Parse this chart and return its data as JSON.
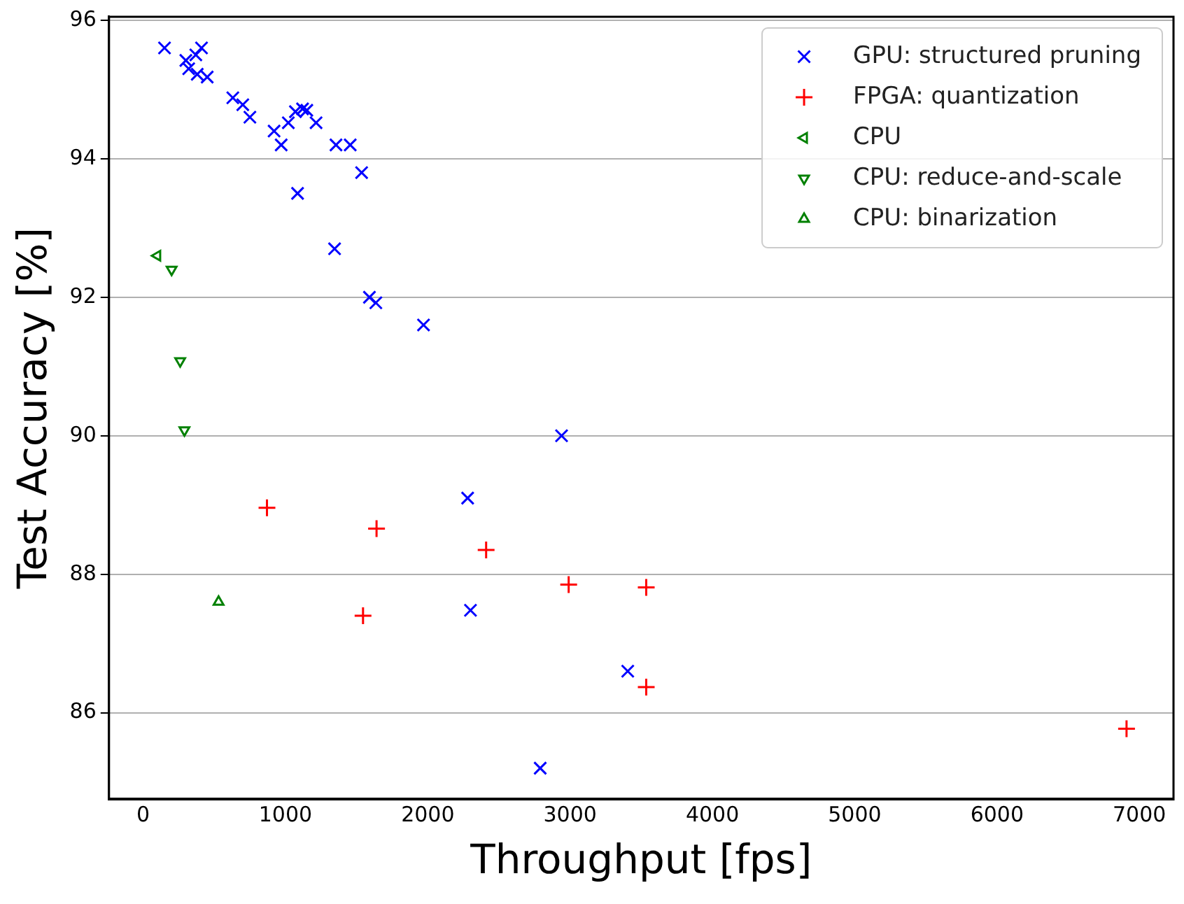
{
  "chart_data": {
    "type": "scatter",
    "xlabel": "Throughput [fps]",
    "ylabel": "Test Accuracy [%]",
    "xlim": [
      -240,
      7240
    ],
    "xticks": [
      0,
      1000,
      2000,
      3000,
      4000,
      5000,
      6000,
      7000
    ],
    "ylim": [
      84.75,
      96.05
    ],
    "yticks": [
      86,
      88,
      90,
      92,
      94,
      96
    ],
    "grid": "y",
    "legend": "top right",
    "series": [
      {
        "name": "GPU: structured pruning",
        "color": "#0000ff",
        "marker": "x",
        "x": [
          150,
          300,
          370,
          410,
          320,
          380,
          450,
          630,
          700,
          750,
          920,
          970,
          1020,
          1070,
          1120,
          1150,
          1215,
          1355,
          1455,
          1535,
          1085,
          1345,
          1590,
          1635,
          1970,
          2940,
          2280,
          2300,
          3405,
          2790
        ],
        "values": [
          95.6,
          95.42,
          95.5,
          95.6,
          95.3,
          95.22,
          95.18,
          94.88,
          94.78,
          94.6,
          94.4,
          94.2,
          94.52,
          94.68,
          94.72,
          94.7,
          94.52,
          94.2,
          94.2,
          93.8,
          93.5,
          92.7,
          92.0,
          91.92,
          91.6,
          90.0,
          89.1,
          87.48,
          86.6,
          85.2
        ]
      },
      {
        "name": "FPGA: quantization",
        "color": "#ff0000",
        "marker": "cross",
        "x": [
          870,
          1640,
          2410,
          2990,
          3535,
          1545,
          3535,
          6910
        ],
        "values": [
          88.96,
          88.66,
          88.35,
          87.85,
          87.81,
          87.4,
          86.37,
          85.77
        ]
      },
      {
        "name": "CPU",
        "color": "#008000",
        "marker": "triangle-left",
        "x": [
          100
        ],
        "values": [
          92.6
        ]
      },
      {
        "name": "CPU: reduce-and-scale",
        "color": "#008000",
        "marker": "triangle-down",
        "x": [
          200,
          260,
          290
        ],
        "values": [
          92.4,
          91.08,
          90.08
        ]
      },
      {
        "name": "CPU: binarization",
        "color": "#008000",
        "marker": "triangle",
        "x": [
          530
        ],
        "values": [
          87.6
        ]
      }
    ]
  }
}
